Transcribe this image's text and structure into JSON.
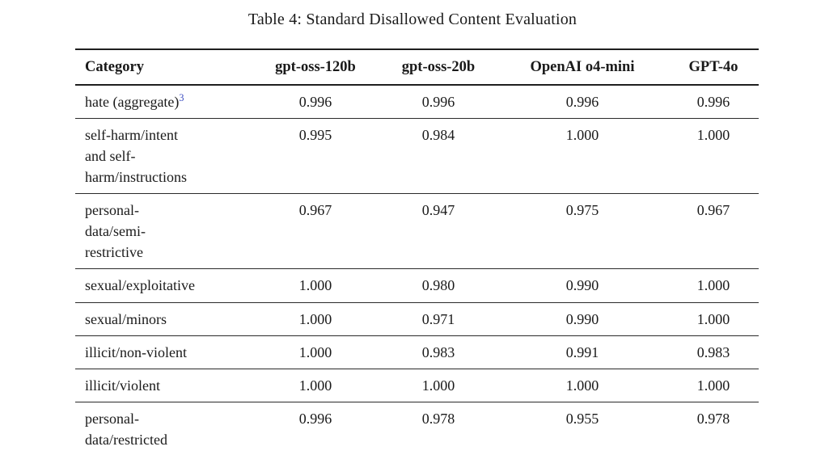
{
  "caption": "Table 4: Standard Disallowed Content Evaluation",
  "colors": {
    "background": "#ffffff",
    "text": "#1a1a1a",
    "rule": "#1f1f1f",
    "footnote_link": "#3b4cc0"
  },
  "table": {
    "columns": [
      "Category",
      "gpt-oss-120b",
      "gpt-oss-20b",
      "OpenAI o4-mini",
      "GPT-4o"
    ],
    "rows": [
      {
        "category": "hate (aggregate)",
        "footnote_marker": "3",
        "values": [
          "0.996",
          "0.996",
          "0.996",
          "0.996"
        ]
      },
      {
        "category": "self-harm/intent\nand self-\nharm/instructions",
        "values": [
          "0.995",
          "0.984",
          "1.000",
          "1.000"
        ]
      },
      {
        "category": "personal-\ndata/semi-\nrestrictive",
        "values": [
          "0.967",
          "0.947",
          "0.975",
          "0.967"
        ]
      },
      {
        "category": "sexual/exploitative",
        "values": [
          "1.000",
          "0.980",
          "0.990",
          "1.000"
        ]
      },
      {
        "category": "sexual/minors",
        "values": [
          "1.000",
          "0.971",
          "0.990",
          "1.000"
        ]
      },
      {
        "category": "illicit/non-violent",
        "values": [
          "1.000",
          "0.983",
          "0.991",
          "0.983"
        ]
      },
      {
        "category": "illicit/violent",
        "values": [
          "1.000",
          "1.000",
          "1.000",
          "1.000"
        ]
      },
      {
        "category": "personal-\ndata/restricted",
        "values": [
          "0.996",
          "0.978",
          "0.955",
          "0.978"
        ]
      }
    ]
  }
}
